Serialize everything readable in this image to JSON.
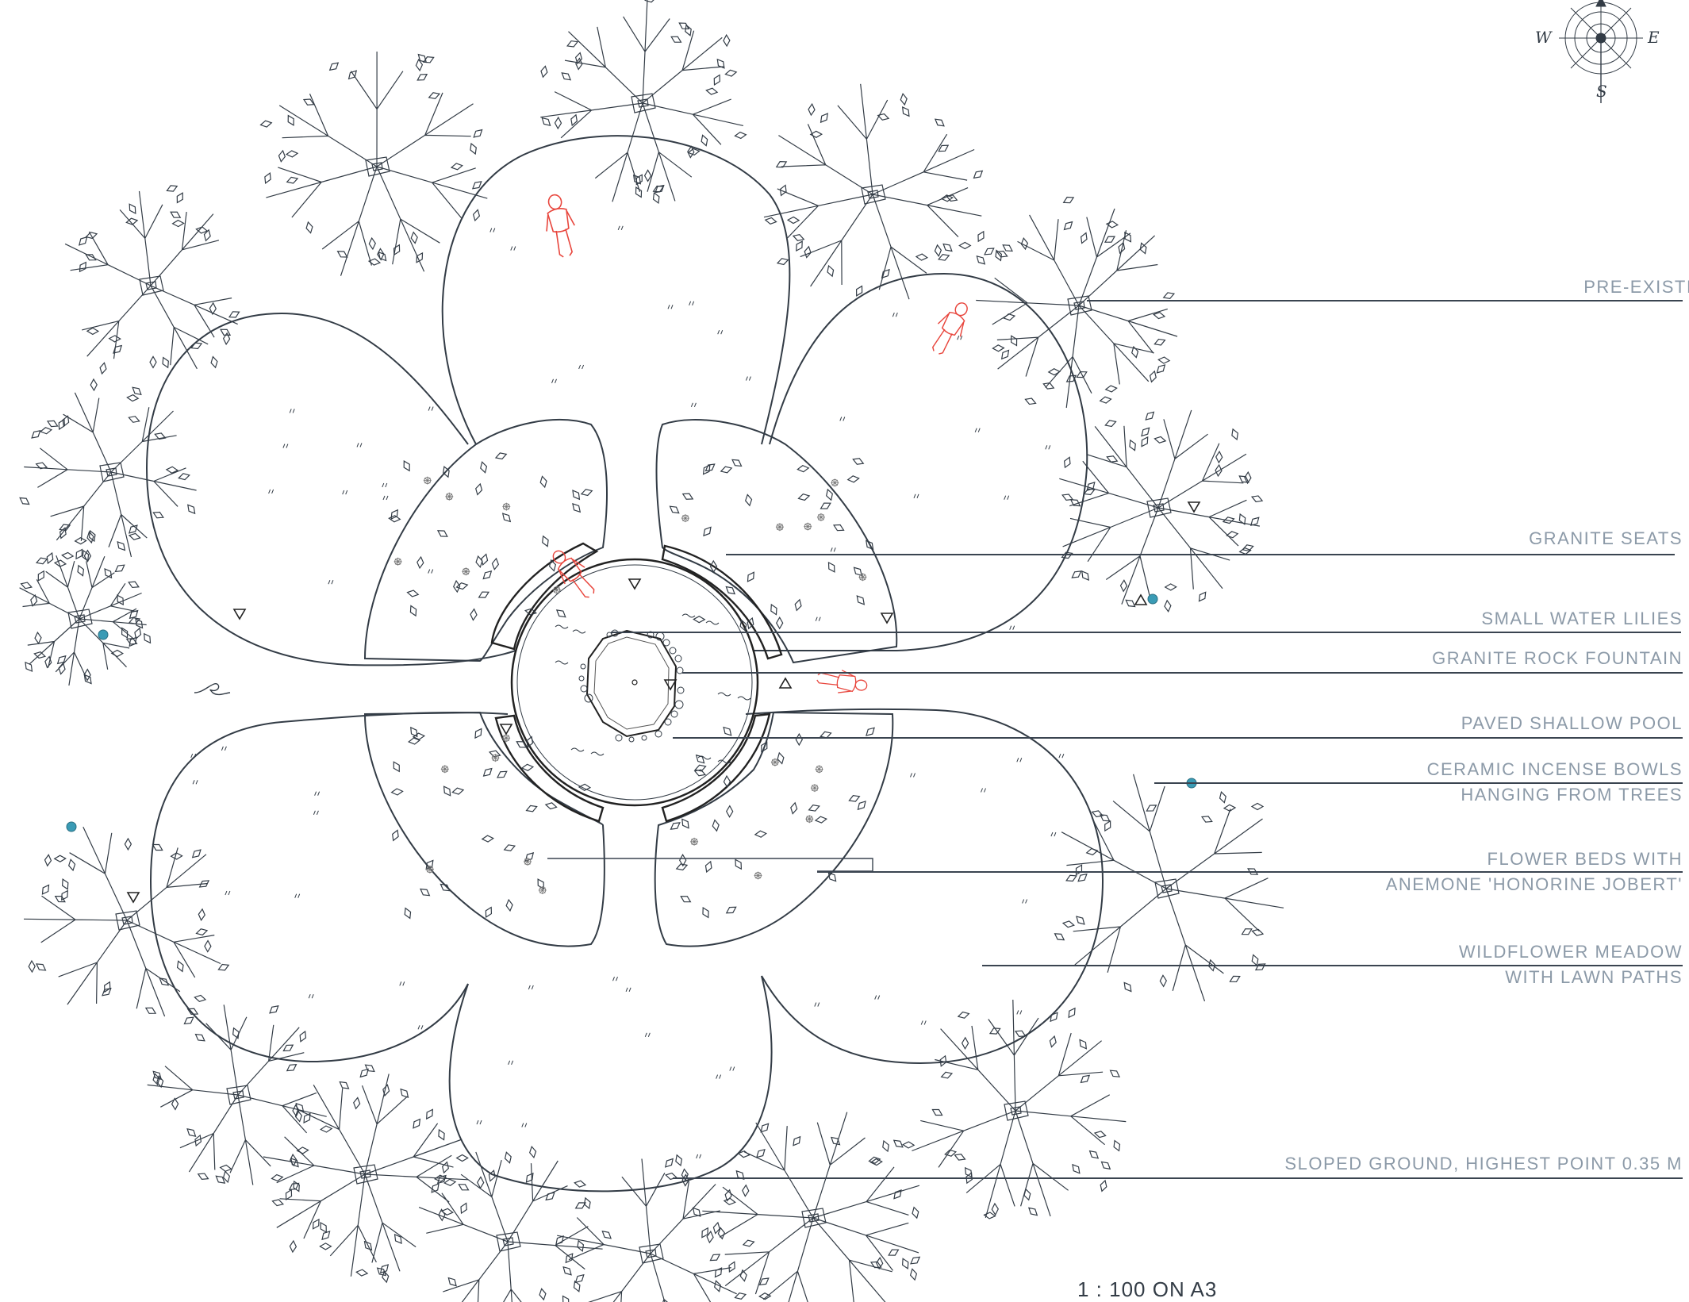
{
  "labels": {
    "pre_existing_trees": "PRE-EXISTING TR",
    "granite_seats": "GRANITE SEATS",
    "small_water_lilies": "SMALL WATER LILIES",
    "granite_rock_fountain": "GRANITE ROCK FOUNTAIN",
    "paved_shallow_pool": "PAVED SHALLOW POOL",
    "ceramic_incense_line1": "CERAMIC INCENSE BOWLS",
    "ceramic_incense_line2": "HANGING FROM TREES",
    "flower_beds_line1": "FLOWER BEDS WITH",
    "flower_beds_line2": "ANEMONE 'HONORINE JOBERT'",
    "wildflower_line1": "WILDFLOWER MEADOW",
    "wildflower_line2": "WITH LAWN PATHS",
    "sloped_ground": "SLOPED GROUND, HIGHEST POINT 0.35 M"
  },
  "scale": "1 : 100 ON A3",
  "compass": {
    "west": "W",
    "east": "E",
    "south": "S"
  },
  "colors": {
    "linework": "#333c46",
    "label_text": "#8c9aa8",
    "people": "#e8453c",
    "incense_bowl": "#3a9bb5"
  }
}
